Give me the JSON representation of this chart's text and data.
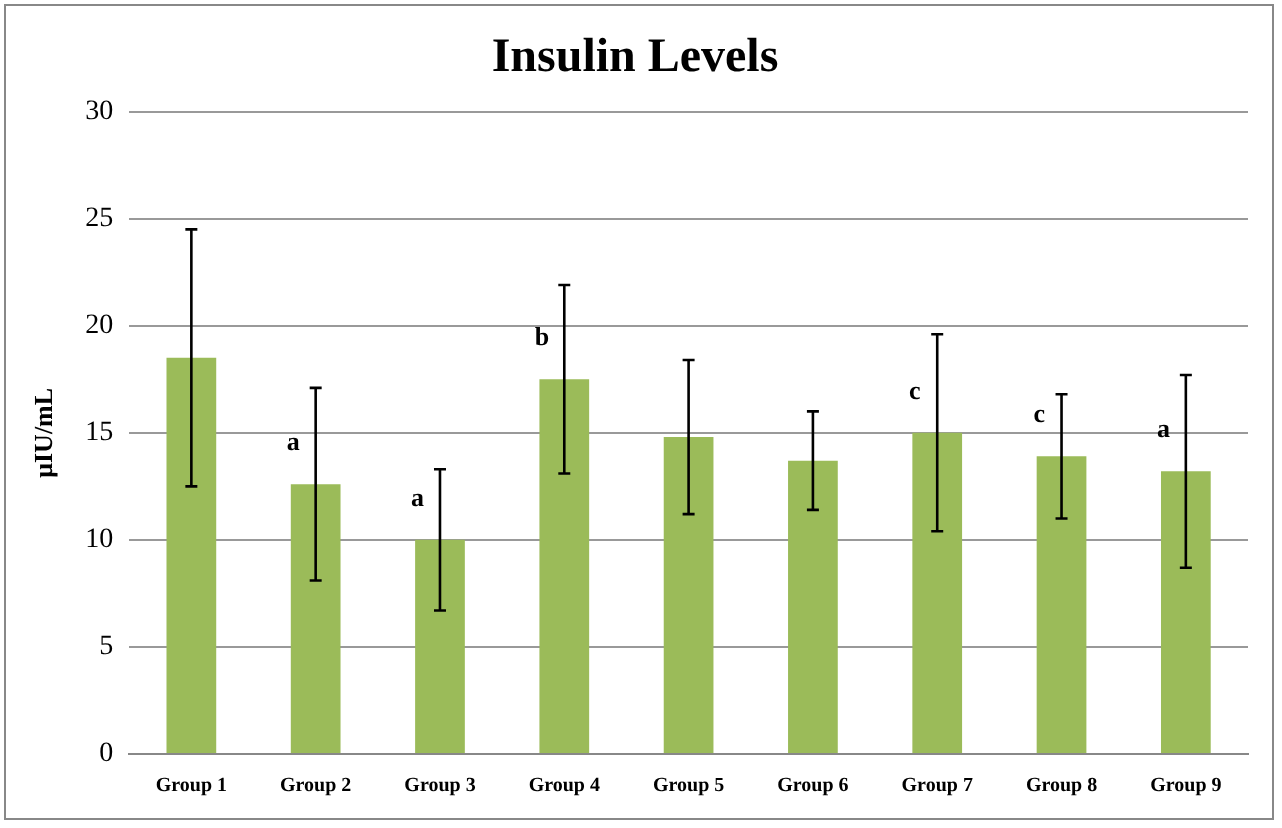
{
  "chart_data": {
    "type": "bar",
    "title": "Insulin Levels",
    "ylabel": "μIU/mL",
    "categories": [
      "Group 1",
      "Group 2",
      "Group 3",
      "Group 4",
      "Group 5",
      "Group 6",
      "Group 7",
      "Group 8",
      "Group 9"
    ],
    "values": [
      18.5,
      12.6,
      10.0,
      17.5,
      14.8,
      13.7,
      15.0,
      13.9,
      13.2
    ],
    "errors": [
      6.0,
      4.5,
      3.3,
      4.4,
      3.6,
      2.3,
      4.6,
      2.9,
      4.5
    ],
    "color": "#9bbb59",
    "ylim": [
      0,
      30
    ],
    "yticks": [
      0,
      5,
      10,
      15,
      20,
      25,
      30
    ],
    "grid": "y",
    "annotations": [
      {
        "text": "a",
        "x": "Group 2",
        "y": 12.6
      },
      {
        "text": "a",
        "x": "Group 3",
        "y": 10.0
      },
      {
        "text": "b",
        "x": "Group 4",
        "y": 17.5
      },
      {
        "text": "c",
        "x": "Group 7",
        "y": 15.0
      },
      {
        "text": "c",
        "x": "Group 8",
        "y": 13.9
      },
      {
        "text": "a",
        "x": "Group 9",
        "y": 13.2
      }
    ]
  }
}
